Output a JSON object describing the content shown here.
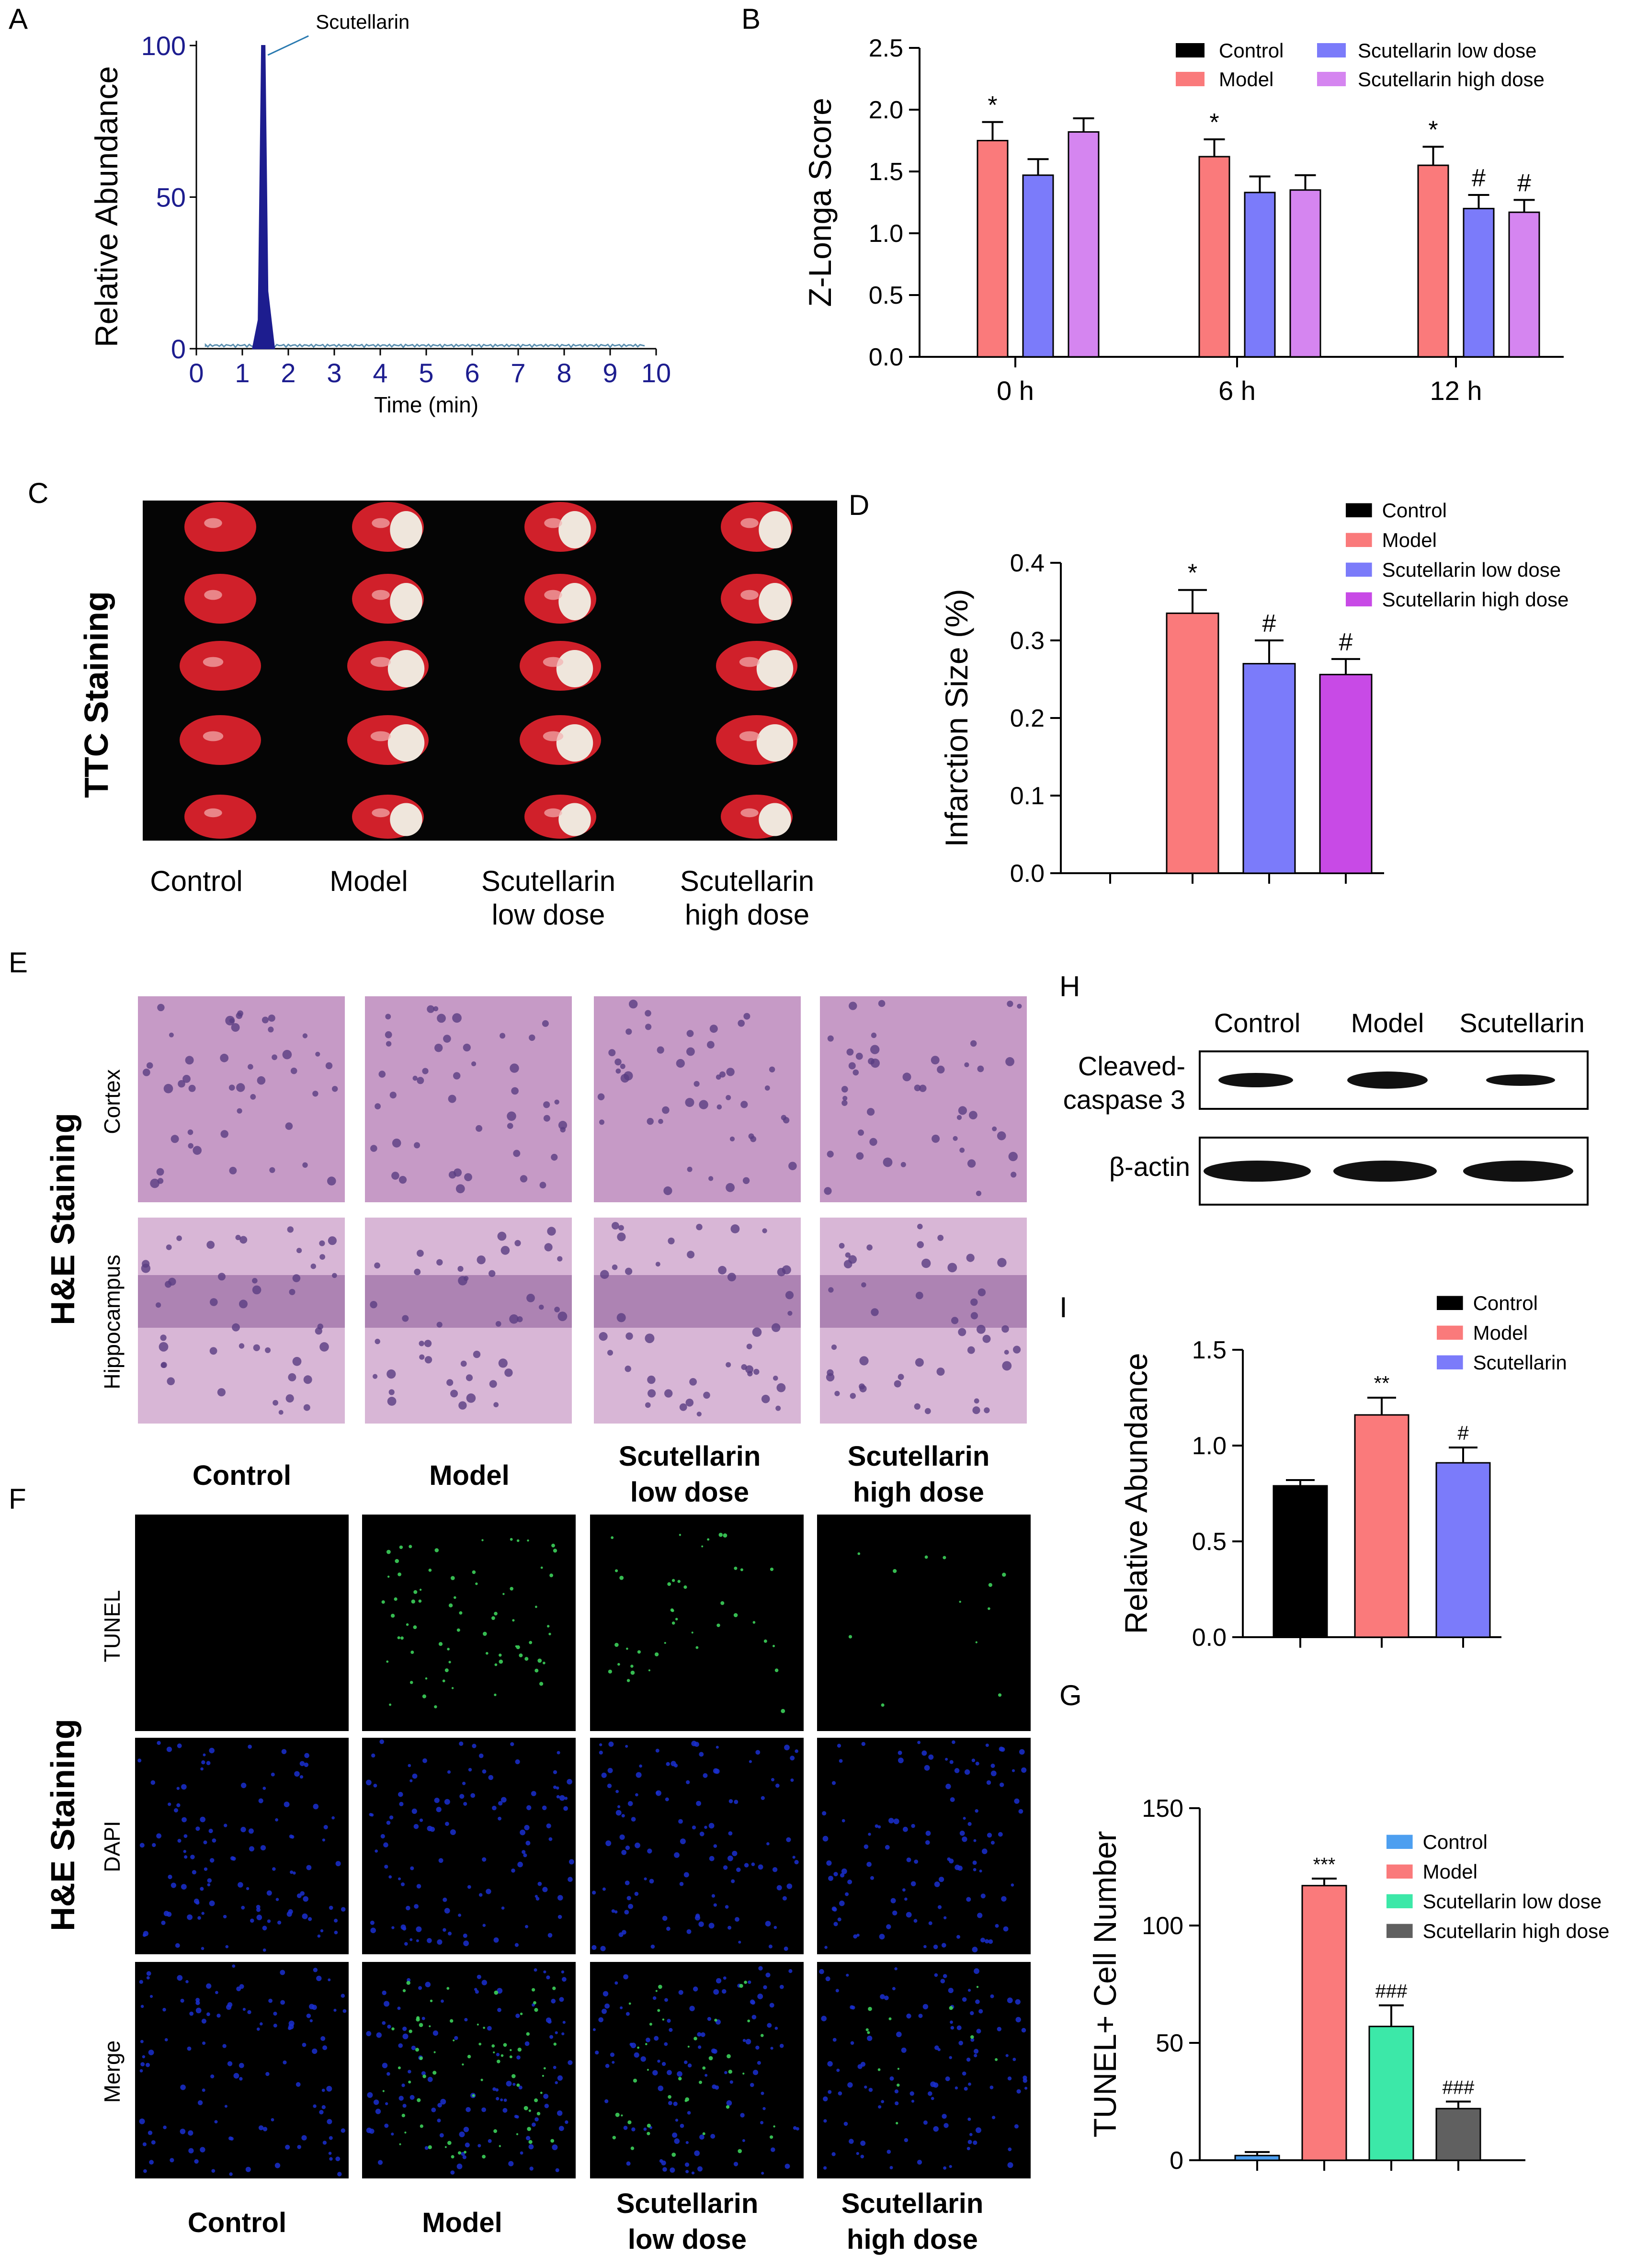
{
  "panel_labels": {
    "A": "A",
    "B": "B",
    "C": "C",
    "D": "D",
    "E": "E",
    "F": "F",
    "G": "G",
    "H": "H",
    "I": "I"
  },
  "colors": {
    "control": "#000000",
    "model": "#fa7a7b",
    "low": "#7b7bfa",
    "high": "#d585f0",
    "high_d": "#c84ae6",
    "control_g": "#4d9ff0",
    "low_g": "#3ce8a8",
    "high_g": "#606060",
    "chromatogram": "#1d1d8f"
  },
  "chart_data": [
    {
      "id": "A",
      "type": "line",
      "ylabel": "Relative Abundance",
      "xlabel": "Time (min)",
      "x_ticks": [
        "0",
        "1",
        "2",
        "3",
        "4",
        "5",
        "6",
        "7",
        "8",
        "9",
        "10"
      ],
      "y_ticks": [
        "0",
        "50",
        "100"
      ],
      "xlim": [
        0,
        10
      ],
      "ylim": [
        0,
        100
      ],
      "annotation": "Scutellarin",
      "peak": {
        "x": 1.45,
        "y": 100
      }
    },
    {
      "id": "B",
      "type": "bar",
      "ylabel": "Z-Longa Score",
      "categories": [
        "0 h",
        "6 h",
        "12 h"
      ],
      "y_ticks": [
        "0.0",
        "0.5",
        "1.0",
        "1.5",
        "2.0",
        "2.5"
      ],
      "ylim": [
        0,
        2.5
      ],
      "legend": [
        "Control",
        "Model",
        "Scutellarin low dose",
        "Scutellarin high dose"
      ],
      "series": [
        {
          "name": "Control",
          "values": [
            0,
            0,
            0
          ],
          "errors": [
            0,
            0,
            0
          ],
          "marks": [
            "",
            "",
            ""
          ]
        },
        {
          "name": "Model",
          "values": [
            1.75,
            1.62,
            1.55
          ],
          "errors": [
            0.15,
            0.14,
            0.15
          ],
          "marks": [
            "*",
            "*",
            "*"
          ]
        },
        {
          "name": "Scutellarin low dose",
          "values": [
            1.47,
            1.33,
            1.2
          ],
          "errors": [
            0.13,
            0.13,
            0.11
          ],
          "marks": [
            "",
            "",
            "#"
          ]
        },
        {
          "name": "Scutellarin high dose",
          "values": [
            1.82,
            1.35,
            1.17
          ],
          "errors": [
            0.11,
            0.12,
            0.1
          ],
          "marks": [
            "",
            "",
            "#"
          ]
        }
      ]
    },
    {
      "id": "D",
      "type": "bar",
      "ylabel": "Infarction Size (%)",
      "categories": [
        "Control",
        "Model",
        "Scutellarin low dose",
        "Scutellarin high dose"
      ],
      "y_ticks": [
        "0.0",
        "0.1",
        "0.2",
        "0.3",
        "0.4"
      ],
      "ylim": [
        0,
        0.4
      ],
      "legend": [
        "Control",
        "Model",
        "Scutellarin low dose",
        "Scutellarin high dose"
      ],
      "values": [
        0,
        0.335,
        0.27,
        0.256
      ],
      "errors": [
        0,
        0.03,
        0.03,
        0.02
      ],
      "marks": [
        "",
        "*",
        "#",
        "#"
      ]
    },
    {
      "id": "I",
      "type": "bar",
      "ylabel": "Relative Abundance",
      "categories": [
        "Control",
        "Model",
        "Scutellarin"
      ],
      "y_ticks": [
        "0.0",
        "0.5",
        "1.0",
        "1.5"
      ],
      "ylim": [
        0,
        1.5
      ],
      "legend": [
        "Control",
        "Model",
        "Scutellarin"
      ],
      "values": [
        0.79,
        1.16,
        0.91
      ],
      "errors": [
        0.03,
        0.09,
        0.08
      ],
      "marks": [
        "",
        "**",
        "#"
      ]
    },
    {
      "id": "G",
      "type": "bar",
      "ylabel": "TUNEL+ Cell Number",
      "categories": [
        "Control",
        "Model",
        "Scutellarin low dose",
        "Scutellarin high dose"
      ],
      "y_ticks": [
        "0",
        "50",
        "100",
        "150"
      ],
      "ylim": [
        0,
        150
      ],
      "legend": [
        "Control",
        "Model",
        "Scutellarin low dose",
        "Scutellarin high dose"
      ],
      "values": [
        2,
        117,
        57,
        22
      ],
      "errors": [
        1.5,
        3,
        9,
        3
      ],
      "marks": [
        "",
        "***",
        "###",
        "###"
      ]
    }
  ],
  "ttc": {
    "row_label": "TTC Staining",
    "groups": [
      "Control",
      "Model",
      "Scutellarin\nlow dose",
      "Scutellarin\nhigh dose"
    ],
    "group_line1": [
      "Control",
      "Model",
      "Scutellarin",
      "Scutellarin"
    ],
    "group_line2": [
      "",
      "",
      "low dose",
      "high dose"
    ]
  },
  "he": {
    "row_label": "H&E Staining",
    "rows": [
      "Cortex",
      "Hippocampus"
    ],
    "col_line1": [
      "Control",
      "Model",
      "Scutellarin",
      "Scutellarin"
    ],
    "col_line2": [
      "",
      "",
      "low dose",
      "high dose"
    ]
  },
  "tunel": {
    "row_label": "H&E Staining",
    "rows": [
      "TUNEL",
      "DAPI",
      "Merge"
    ],
    "col_line1": [
      "Control",
      "Model",
      "Scutellarin",
      "Scutellarin"
    ],
    "col_line2": [
      "",
      "",
      "low dose",
      "high dose"
    ]
  },
  "western": {
    "cols": [
      "Control",
      "Model",
      "Scutellarin"
    ],
    "row1_line1": "Cleaved-",
    "row1_line2": "caspase 3",
    "row2": "β-actin"
  }
}
